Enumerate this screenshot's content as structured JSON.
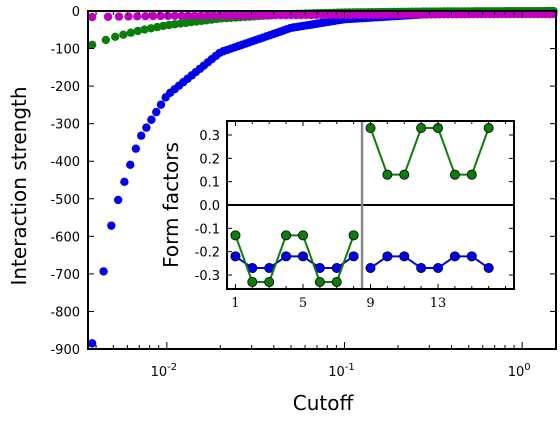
{
  "chart_data": [
    {
      "type": "scatter",
      "title": "",
      "xlabel": "Cutoff",
      "ylabel": "Interaction strength",
      "xscale": "log",
      "xlim": [
        0.0036,
        1.55
      ],
      "ylim": [
        -900,
        0
      ],
      "xticks": [
        {
          "value": 0.01,
          "base": "10",
          "exp": "-2"
        },
        {
          "value": 0.1,
          "base": "10",
          "exp": "-1"
        },
        {
          "value": 1,
          "base": "10",
          "exp": "0"
        }
      ],
      "yticks": [
        {
          "value": 0,
          "label": "0"
        },
        {
          "value": -100,
          "label": "-100"
        },
        {
          "value": -200,
          "label": "-200"
        },
        {
          "value": -300,
          "label": "-300"
        },
        {
          "value": -400,
          "label": "-400"
        },
        {
          "value": -500,
          "label": "-500"
        },
        {
          "value": -600,
          "label": "-600"
        },
        {
          "value": -700,
          "label": "-700"
        },
        {
          "value": -800,
          "label": "-800"
        },
        {
          "value": -900,
          "label": "-900"
        }
      ],
      "grid": false,
      "legend": "none",
      "series": [
        {
          "color": "#0000ee",
          "marker": "circle",
          "x_range": [
            0.0038,
            1.5
          ],
          "x_samples": [
            0.0038,
            0.004,
            0.005,
            0.007,
            0.01,
            0.02,
            0.05,
            0.1,
            0.3,
            1.0,
            1.5
          ],
          "values": [
            -885,
            -810,
            -540,
            -340,
            -225,
            -110,
            -45,
            -22,
            -8,
            -2,
            -1
          ]
        },
        {
          "color": "#0a7d0a",
          "marker": "circle",
          "x_range": [
            0.0038,
            1.5
          ],
          "x_samples": [
            0.0038,
            0.005,
            0.007,
            0.01,
            0.02,
            0.05,
            0.1,
            0.3,
            1.0,
            1.5
          ],
          "values": [
            -90,
            -70,
            -52,
            -38,
            -20,
            -8,
            -4,
            -1.5,
            -0.5,
            -0.3
          ]
        },
        {
          "color": "#c000c0",
          "marker": "circle",
          "x_range": [
            0.0038,
            1.5
          ],
          "x_samples": [
            0.0038,
            0.01,
            0.1,
            1.0,
            1.5
          ],
          "values": [
            -16,
            -13,
            -10,
            -8,
            -8
          ]
        }
      ]
    },
    {
      "type": "line",
      "title": "",
      "xlabel": "",
      "ylabel": "Form factors",
      "xlim": [
        0.5,
        17.5
      ],
      "ylim": [
        -0.36,
        0.36
      ],
      "xticks": [
        1,
        5,
        9,
        13
      ],
      "yticks": [
        {
          "value": 0.3,
          "label": "0.3"
        },
        {
          "value": 0.2,
          "label": "0.2"
        },
        {
          "value": 0.1,
          "label": "0.1"
        },
        {
          "value": 0.0,
          "label": "0.0"
        },
        {
          "value": -0.1,
          "label": "-0.1"
        },
        {
          "value": -0.2,
          "label": "-0.2"
        },
        {
          "value": -0.3,
          "label": "-0.3"
        }
      ],
      "hline": 0.0,
      "vline": 8.5,
      "grid": false,
      "legend": "none",
      "series": [
        {
          "color": "#0000ee",
          "segments": [
            {
              "x": [
                1,
                2,
                3,
                4,
                5,
                6,
                7,
                8
              ],
              "values": [
                -0.22,
                -0.27,
                -0.27,
                -0.22,
                -0.22,
                -0.27,
                -0.27,
                -0.22
              ]
            },
            {
              "x": [
                9,
                10,
                11,
                12,
                13,
                14,
                15,
                16
              ],
              "values": [
                -0.27,
                -0.22,
                -0.22,
                -0.27,
                -0.27,
                -0.22,
                -0.22,
                -0.27
              ]
            }
          ]
        },
        {
          "color": "#0a7d0a",
          "segments": [
            {
              "x": [
                1,
                2,
                3,
                4,
                5,
                6,
                7,
                8
              ],
              "values": [
                -0.13,
                -0.33,
                -0.33,
                -0.13,
                -0.13,
                -0.33,
                -0.33,
                -0.13
              ]
            },
            {
              "x": [
                9,
                10,
                11,
                12,
                13,
                14,
                15,
                16
              ],
              "values": [
                0.33,
                0.13,
                0.13,
                0.33,
                0.33,
                0.13,
                0.13,
                0.33
              ]
            }
          ]
        }
      ]
    }
  ]
}
